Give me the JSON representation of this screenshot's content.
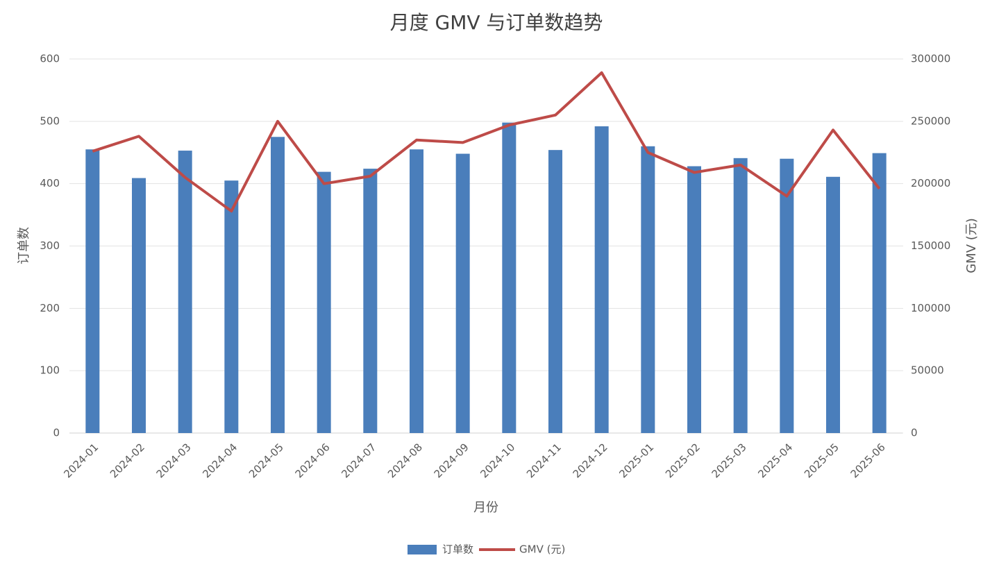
{
  "chart_data": {
    "type": "bar_line",
    "title": "月度 GMV 与订单数趋势",
    "x_label": "月份",
    "y_label": "订单数",
    "y2_label": "GMV (元)",
    "categories": [
      "2024-01",
      "2024-02",
      "2024-03",
      "2024-04",
      "2024-05",
      "2024-06",
      "2024-07",
      "2024-08",
      "2024-09",
      "2024-10",
      "2024-11",
      "2024-12",
      "2025-01",
      "2025-02",
      "2025-03",
      "2025-04",
      "2025-05",
      "2025-06"
    ],
    "series": [
      {
        "name": "订单数",
        "type": "bar",
        "color": "#4a7ebb",
        "axis": "y",
        "values": [
          455,
          409,
          453,
          405,
          475,
          419,
          424,
          455,
          448,
          498,
          454,
          492,
          460,
          428,
          441,
          440,
          411,
          449
        ]
      },
      {
        "name": "GMV (元)",
        "type": "line",
        "color": "#be4b48",
        "axis": "y2",
        "values": [
          226000,
          238000,
          205000,
          178000,
          250000,
          200000,
          206000,
          235000,
          233000,
          247000,
          255000,
          289000,
          225000,
          209000,
          215000,
          190000,
          243000,
          196000
        ]
      }
    ],
    "ylim": [
      0,
      600
    ],
    "yticks": [
      0,
      100,
      200,
      300,
      400,
      500,
      600
    ],
    "y2lim": [
      0,
      300000
    ],
    "y2ticks": [
      0,
      50000,
      100000,
      150000,
      200000,
      250000,
      300000
    ],
    "grid": true,
    "legend": "bottom"
  }
}
